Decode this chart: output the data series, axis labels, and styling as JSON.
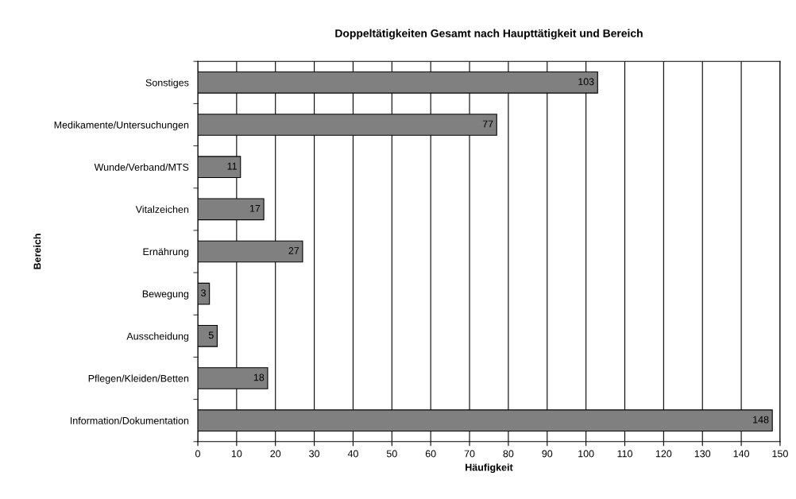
{
  "chart_data": {
    "type": "bar",
    "orientation": "horizontal",
    "title": "Doppeltätigkeiten Gesamt nach Haupttätigkeit und Bereich",
    "xlabel": "Häufigkeit",
    "ylabel": "Bereich",
    "categories": [
      "Sonstiges",
      "Medikamente/Untersuchungen",
      "Wunde/Verband/MTS",
      "Vitalzeichen",
      "Ernährung",
      "Bewegung",
      "Ausscheidung",
      "Pflegen/Kleiden/Betten",
      "Information/Dokumentation"
    ],
    "values": [
      103,
      77,
      11,
      17,
      27,
      3,
      5,
      18,
      148
    ],
    "color": "#808080",
    "data_labels": true,
    "grid": "x",
    "legend": false,
    "xlim": [
      0,
      150
    ],
    "xticks": [
      0,
      10,
      20,
      30,
      40,
      50,
      60,
      70,
      80,
      90,
      100,
      110,
      120,
      130,
      140,
      150
    ]
  }
}
